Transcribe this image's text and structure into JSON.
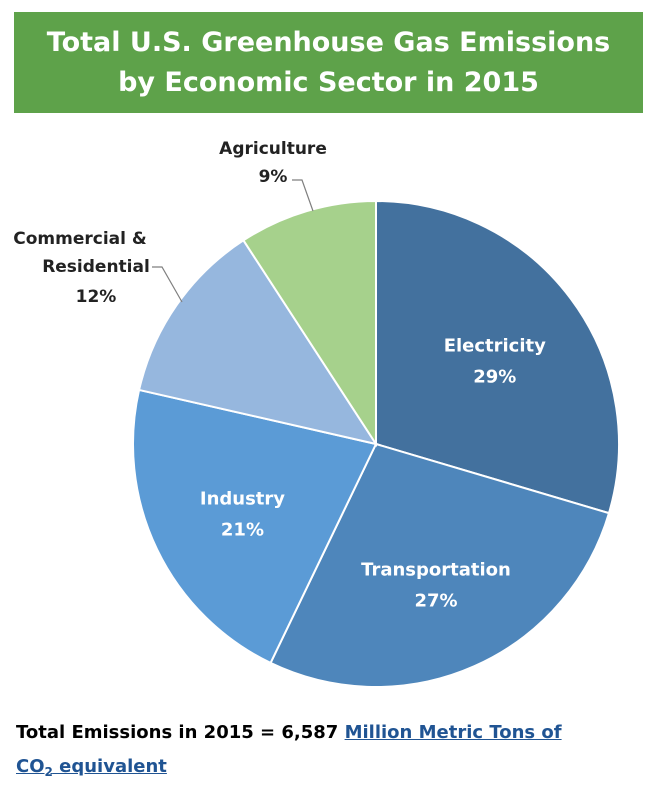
{
  "title": {
    "line1": "Total U.S. Greenhouse Gas Emissions",
    "line2": "by Economic Sector in 2015"
  },
  "colors": {
    "banner": "#5ea24a",
    "link": "#205493"
  },
  "chart_data": {
    "type": "pie",
    "title": "Total U.S. Greenhouse Gas Emissions by Economic Sector in 2015",
    "slices": [
      {
        "label": "Electricity",
        "value": 29,
        "value_label": "29%",
        "color": "#43719e",
        "label_style": "inside"
      },
      {
        "label": "Transportation",
        "value": 27,
        "value_label": "27%",
        "color": "#4e86bb",
        "label_style": "inside"
      },
      {
        "label": "Industry",
        "value": 21,
        "value_label": "21%",
        "color": "#5b9bd6",
        "label_style": "inside"
      },
      {
        "label": "Commercial & Residential",
        "value": 12,
        "value_label": "12%",
        "color": "#96b7de",
        "label_style": "outside"
      },
      {
        "label": "Agriculture",
        "value": 9,
        "value_label": "9%",
        "color": "#a6d18c",
        "label_style": "outside"
      }
    ]
  },
  "footer": {
    "prefix": "Total Emissions in 2015 = 6,587 ",
    "link_text_1": "Million Metric Tons of",
    "link_co": "CO",
    "link_sub": "2",
    "link_text_2": " equivalent"
  }
}
